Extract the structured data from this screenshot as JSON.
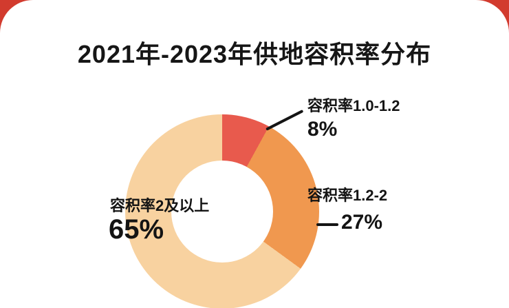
{
  "page": {
    "background_color": "#d23b2e",
    "card_color": "#ffffff"
  },
  "chart_data": {
    "type": "pie",
    "subtype": "donut",
    "title": "2021年-2023年供地容积率分布",
    "categories": [
      "容积率1.0-1.2",
      "容积率1.2-2",
      "容积率2及以上"
    ],
    "values": [
      8,
      27,
      65
    ],
    "value_labels": [
      "8%",
      "27%",
      "65%"
    ],
    "unit": "%",
    "colors": [
      "#e85a4d",
      "#f0984f",
      "#f8d2a0"
    ],
    "start_angle_deg": 0,
    "legend": "none",
    "labels_position": "outside",
    "text_color": "#141414"
  }
}
